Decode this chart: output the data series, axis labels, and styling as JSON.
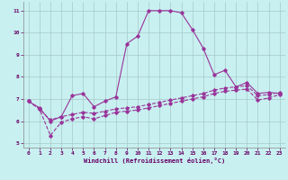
{
  "xlabel": "Windchill (Refroidissement éolien,°C)",
  "bg_color": "#c8f0f0",
  "grid_color": "#a8c8c8",
  "line_color": "#993399",
  "xlim": [
    -0.5,
    23.5
  ],
  "ylim": [
    4.8,
    11.4
  ],
  "yticks": [
    5,
    6,
    7,
    8,
    9,
    10,
    11
  ],
  "xticks": [
    0,
    1,
    2,
    3,
    4,
    5,
    6,
    7,
    8,
    9,
    10,
    11,
    12,
    13,
    14,
    15,
    16,
    17,
    18,
    19,
    20,
    21,
    22,
    23
  ],
  "line1_x": [
    0,
    1,
    2,
    3,
    4,
    5,
    6,
    7,
    8,
    9,
    10,
    11,
    12,
    13,
    14,
    15,
    16,
    17,
    18,
    19,
    20,
    21,
    22,
    23
  ],
  "line1_y": [
    6.9,
    6.6,
    6.0,
    6.2,
    7.15,
    7.25,
    6.65,
    6.9,
    7.1,
    9.5,
    9.85,
    11.0,
    11.0,
    11.0,
    10.9,
    10.15,
    9.3,
    8.1,
    8.3,
    7.55,
    7.75,
    7.25,
    7.3,
    7.25
  ],
  "line2_x": [
    0,
    1,
    2,
    3,
    4,
    5,
    6,
    7,
    8,
    9,
    10,
    11,
    12,
    13,
    14,
    15,
    16,
    17,
    18,
    19,
    20,
    21,
    22,
    23
  ],
  "line2_y": [
    6.9,
    6.55,
    6.05,
    6.2,
    6.3,
    6.4,
    6.35,
    6.45,
    6.55,
    6.6,
    6.65,
    6.75,
    6.85,
    6.95,
    7.05,
    7.15,
    7.25,
    7.4,
    7.5,
    7.55,
    7.6,
    7.15,
    7.2,
    7.3
  ],
  "line3_x": [
    0,
    1,
    2,
    3,
    4,
    5,
    6,
    7,
    8,
    9,
    10,
    11,
    12,
    13,
    14,
    15,
    16,
    17,
    18,
    19,
    20,
    21,
    22,
    23
  ],
  "line3_y": [
    6.9,
    6.55,
    5.35,
    5.95,
    6.1,
    6.2,
    6.1,
    6.25,
    6.4,
    6.45,
    6.5,
    6.6,
    6.7,
    6.8,
    6.9,
    7.0,
    7.1,
    7.25,
    7.35,
    7.4,
    7.45,
    6.95,
    7.05,
    7.2
  ],
  "marker": "D",
  "markersize": 1.8,
  "linewidth": 0.8
}
